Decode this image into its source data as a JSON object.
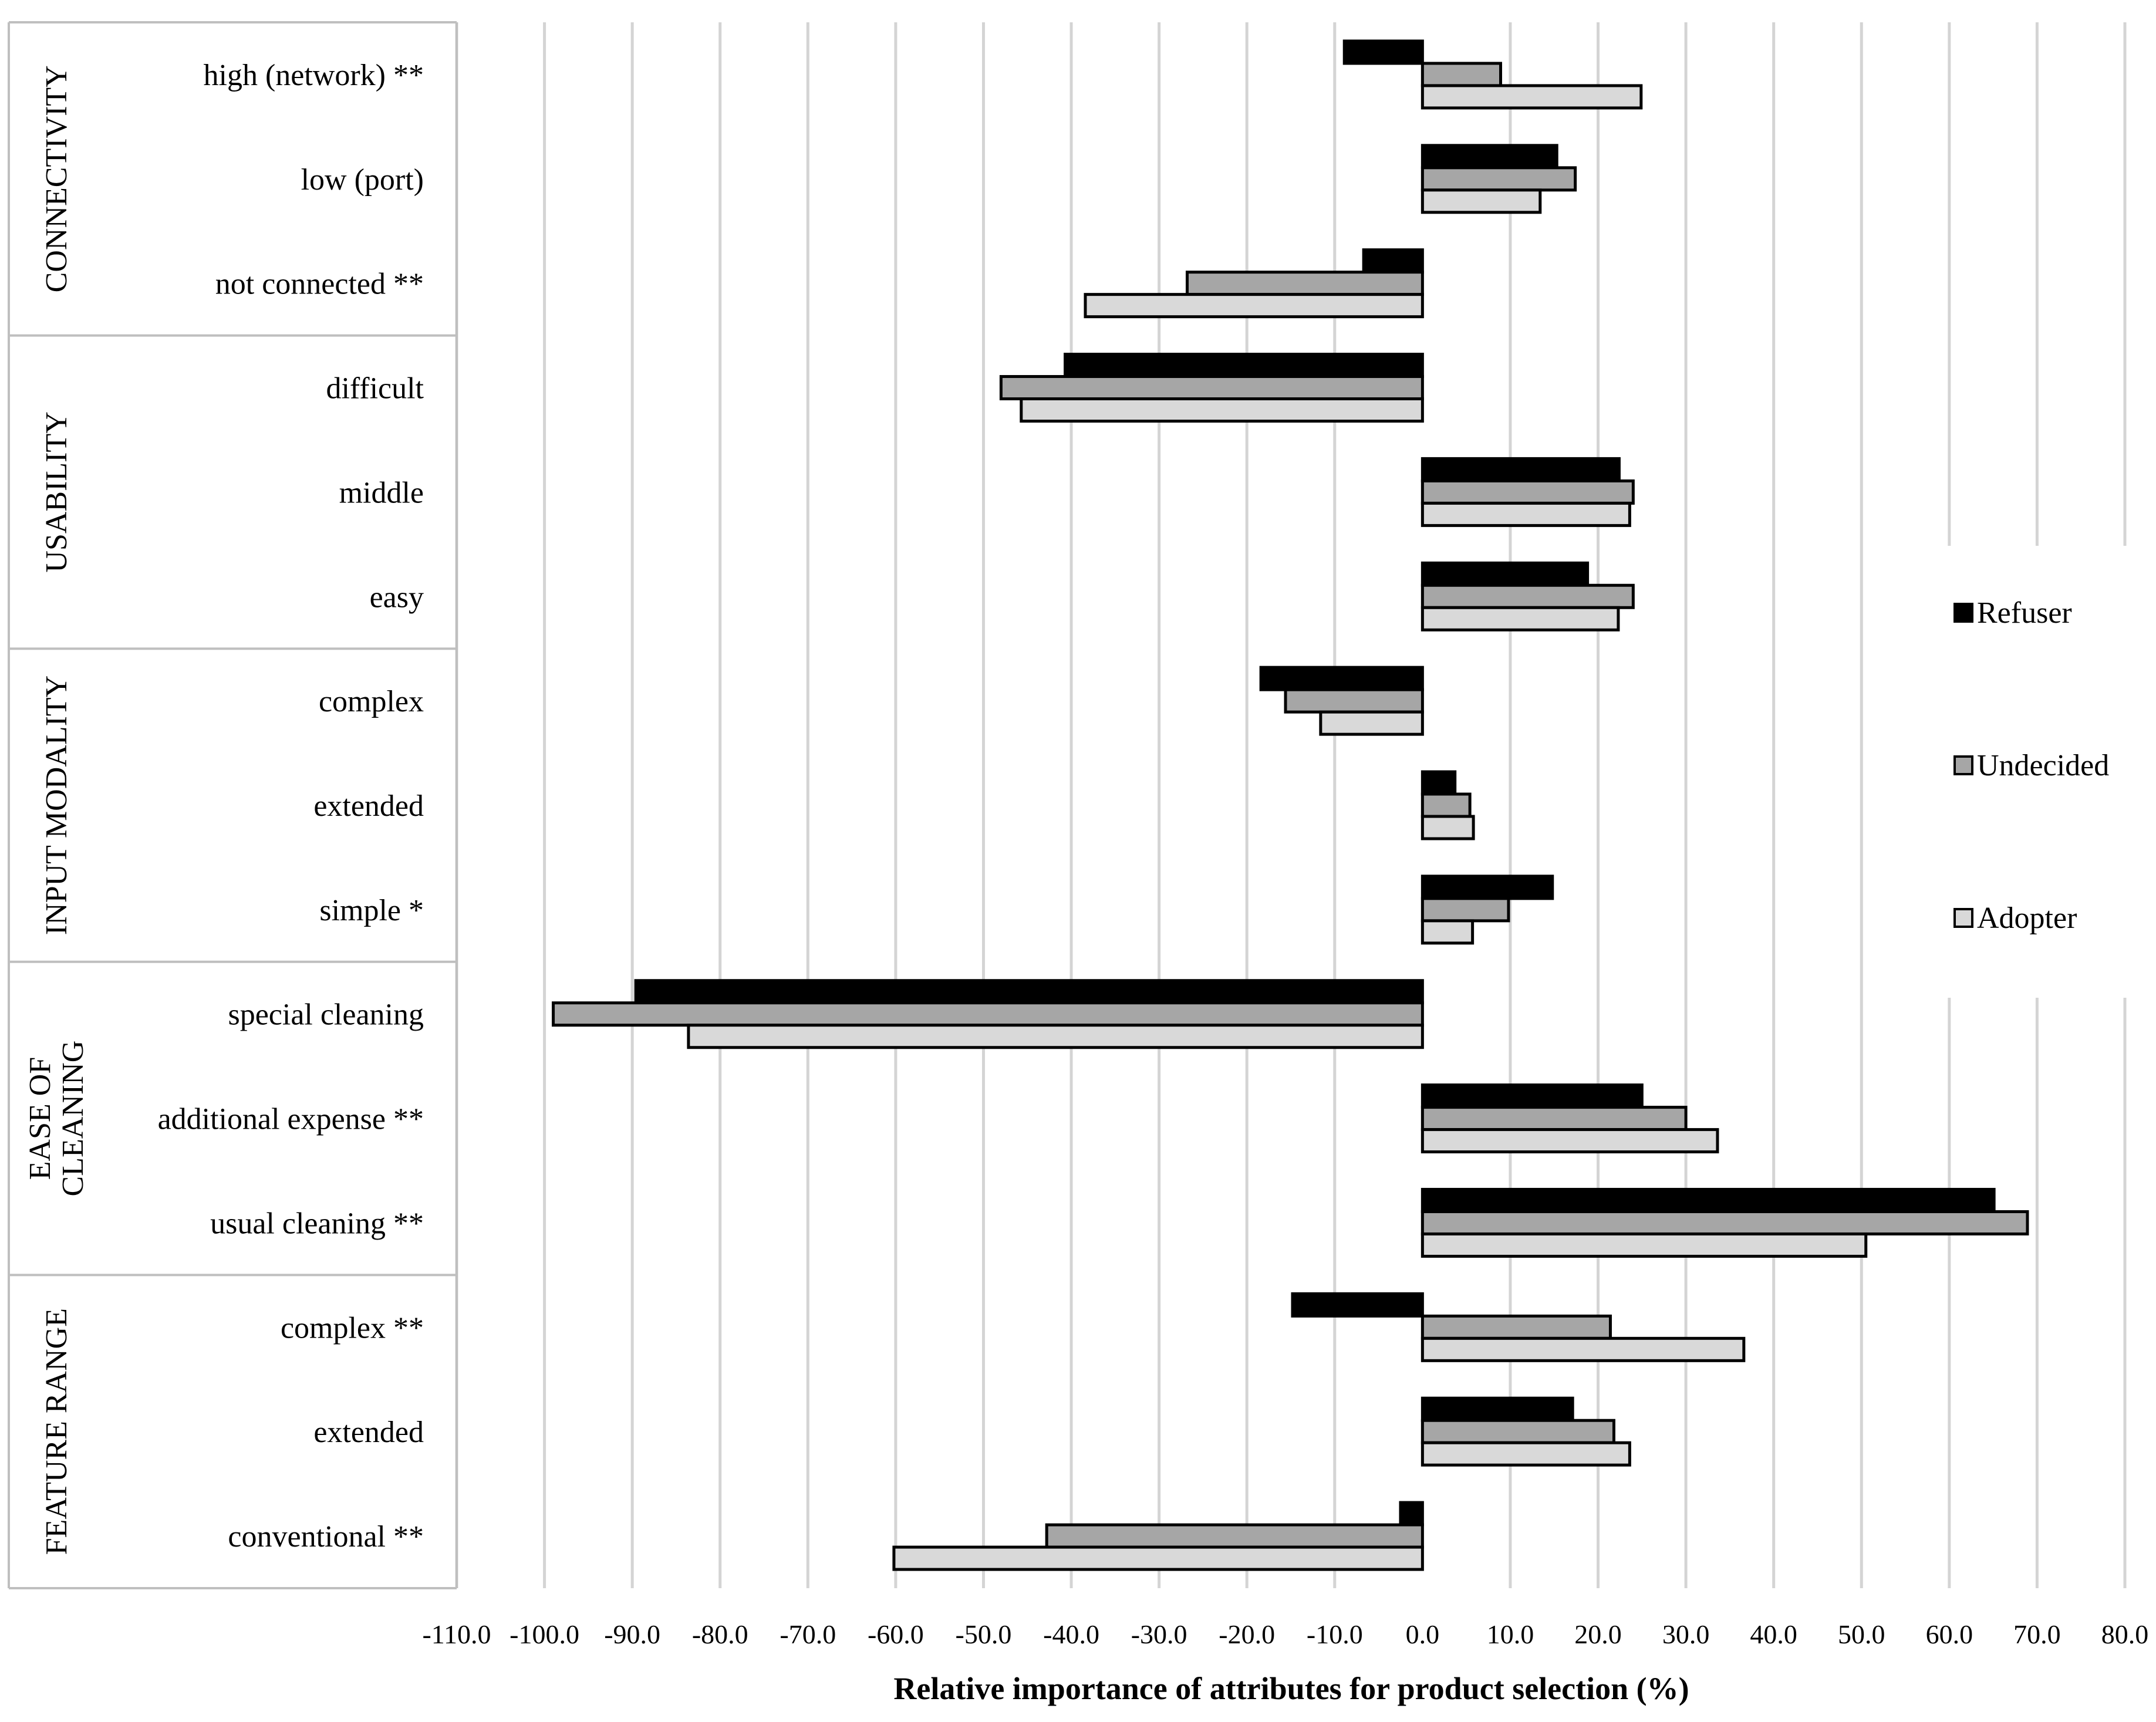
{
  "chart_data": {
    "type": "bar",
    "orientation": "horizontal",
    "title": "",
    "xlabel": "Relative importance of attributes for product selection (%)",
    "ylabel": "",
    "xlim": [
      -110,
      80
    ],
    "xticks": [
      -110,
      -100,
      -90,
      -80,
      -70,
      -60,
      -50,
      -40,
      -30,
      -20,
      -10,
      0,
      10,
      20,
      30,
      40,
      50,
      60,
      70,
      80
    ],
    "xtick_labels": [
      "-110.0",
      "-100.0",
      "-90.0",
      "-80.0",
      "-70.0",
      "-60.0",
      "-50.0",
      "-40.0",
      "-30.0",
      "-20.0",
      "-10.0",
      "0.0",
      "10.0",
      "20.0",
      "30.0",
      "40.0",
      "50.0",
      "60.0",
      "70.0",
      "80.0"
    ],
    "grid": true,
    "legend_position": "right",
    "groups": [
      {
        "name": "CONNECTIVITY",
        "lines": [
          "CONNECTIVITY"
        ],
        "size": 3
      },
      {
        "name": "USABILITY",
        "lines": [
          "USABILITY"
        ],
        "size": 3
      },
      {
        "name": "INPUT MODALITY",
        "lines": [
          "INPUT MODALITY"
        ],
        "size": 3
      },
      {
        "name": "EASE OF CLEANING",
        "lines": [
          "EASE OF",
          "CLEANING"
        ],
        "size": 3
      },
      {
        "name": "FEATURE RANGE",
        "lines": [
          "FEATURE RANGE"
        ],
        "size": 3
      }
    ],
    "categories": [
      "high (network) **",
      "low (port)",
      "not connected **",
      "difficult",
      "middle",
      "easy",
      "complex",
      "extended",
      "simple *",
      "special cleaning",
      "additional expense **",
      "usual cleaning **",
      "complex **",
      "extended",
      "conventional **"
    ],
    "series": [
      {
        "name": "Refuser",
        "color": "#000000",
        "values": [
          -8.9,
          15.3,
          -6.7,
          -40.7,
          22.4,
          18.8,
          -18.4,
          3.7,
          14.8,
          -89.6,
          25.0,
          65.1,
          -14.8,
          17.1,
          -2.5
        ]
      },
      {
        "name": "Undecided",
        "color": "#a6a6a6",
        "values": [
          8.9,
          17.4,
          -26.8,
          -48.0,
          24.0,
          24.0,
          -15.6,
          5.4,
          9.8,
          -99.0,
          30.0,
          68.9,
          21.4,
          21.8,
          -42.8
        ]
      },
      {
        "name": "Adopter",
        "color": "#d9d9d9",
        "values": [
          24.9,
          13.4,
          -38.4,
          -45.7,
          23.6,
          22.3,
          -11.6,
          5.8,
          5.7,
          -83.6,
          33.6,
          50.5,
          36.6,
          23.6,
          -60.2
        ]
      }
    ]
  }
}
